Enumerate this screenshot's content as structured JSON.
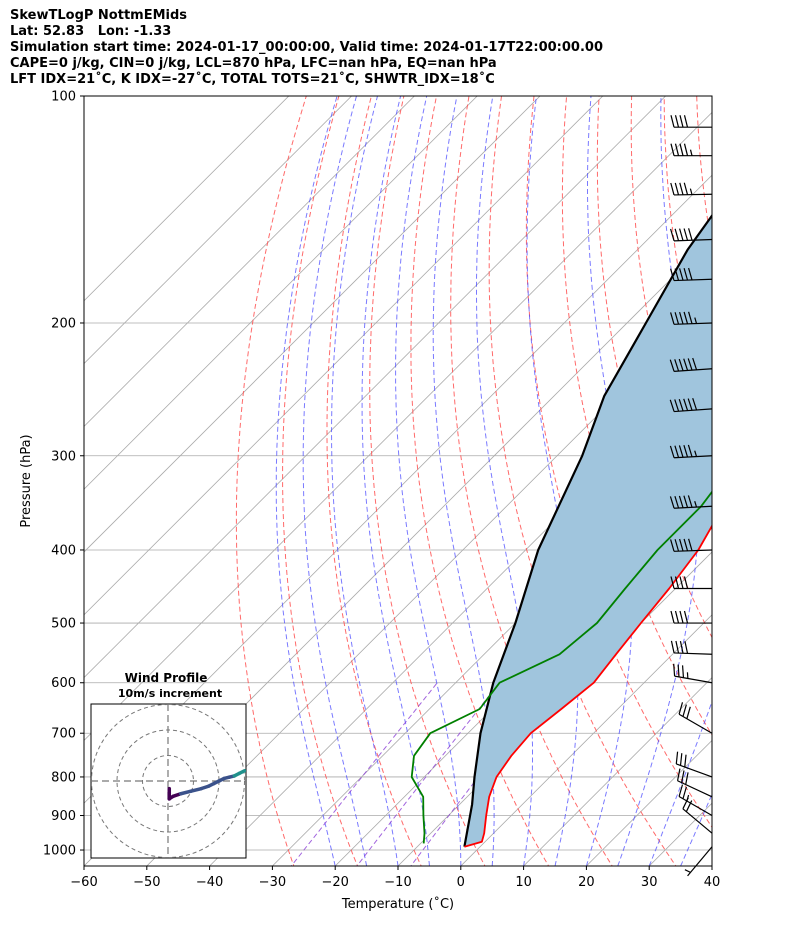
{
  "header": {
    "line1": "SkewTLogP NottmEMids",
    "line2": "Lat: 52.83   Lon: -1.33",
    "line3": "Simulation start time: 2024-01-17_00:00:00, Valid time: 2024-01-17T22:00:00.00",
    "line4": "CAPE=0 j/kg, CIN=0 j/kg, LCL=870 hPa, LFC=nan hPa, EQ=nan hPa",
    "line5": "LFT IDX=21˚C, K IDX=-27˚C, TOTAL TOTS=21˚C, SHWTR_IDX=18˚C"
  },
  "chart_data": {
    "type": "line",
    "xlabel": "Temperature (˚C)",
    "ylabel": "Pressure (hPa)",
    "xlim": [
      -60,
      40
    ],
    "ylim": [
      1050,
      100
    ],
    "y_scale": "log",
    "skew": "isotherms skewed 45°",
    "grid": true,
    "x_ticks": [
      "−60",
      "−50",
      "−40",
      "−30",
      "−20",
      "−10",
      "0",
      "10",
      "20",
      "30",
      "40"
    ],
    "y_ticks": [
      "100",
      "200",
      "300",
      "400",
      "500",
      "600",
      "700",
      "800",
      "900",
      "1000"
    ],
    "series": [
      {
        "role": "temperature",
        "color": "#ff0000",
        "points": [
          [
            -2.5,
            990
          ],
          [
            -0.5,
            975
          ],
          [
            -1.5,
            950
          ],
          [
            -4,
            900
          ],
          [
            -6.5,
            850
          ],
          [
            -8.5,
            800
          ],
          [
            -9.5,
            750
          ],
          [
            -10,
            700
          ],
          [
            -9,
            650
          ],
          [
            -8,
            600
          ],
          [
            -9,
            550
          ],
          [
            -10,
            500
          ],
          [
            -11,
            450
          ],
          [
            -12.5,
            400
          ],
          [
            -15.5,
            350
          ],
          [
            -19.5,
            300
          ],
          [
            -22.5,
            265
          ],
          [
            -24,
            240
          ],
          [
            -24,
            225
          ],
          [
            -24,
            200
          ],
          [
            -25,
            180
          ],
          [
            -27,
            160
          ],
          [
            -30,
            140
          ],
          [
            -34,
            125
          ],
          [
            -39,
            115
          ],
          [
            -44,
            100
          ]
        ]
      },
      {
        "role": "dewpoint",
        "color": "#008000",
        "points": [
          [
            -9.5,
            980
          ],
          [
            -11,
            950
          ],
          [
            -14,
            900
          ],
          [
            -17,
            850
          ],
          [
            -22,
            800
          ],
          [
            -25,
            750
          ],
          [
            -26,
            700
          ],
          [
            -22,
            650
          ],
          [
            -23,
            600
          ],
          [
            -18,
            550
          ],
          [
            -17,
            500
          ],
          [
            -18,
            450
          ],
          [
            -19,
            400
          ],
          [
            -19,
            350
          ],
          [
            -21,
            300
          ],
          [
            -22,
            270
          ],
          [
            -22,
            250
          ],
          [
            -24,
            230
          ],
          [
            -25,
            200
          ],
          [
            -26,
            175
          ],
          [
            -27,
            160
          ],
          [
            -30,
            150
          ],
          [
            -39,
            135
          ],
          [
            -46,
            120
          ],
          [
            -53,
            100
          ]
        ]
      },
      {
        "role": "parcel_path",
        "color": "#000000",
        "points": [
          [
            -2.5,
            990
          ],
          [
            -8,
            870
          ],
          [
            -12,
            800
          ],
          [
            -18,
            700
          ],
          [
            -24,
            600
          ],
          [
            -30,
            500
          ],
          [
            -38,
            400
          ],
          [
            -46,
            300
          ],
          [
            -52,
            250
          ],
          [
            -57,
            200
          ],
          [
            -62,
            160
          ],
          [
            -64,
            140
          ],
          [
            -68,
            100
          ]
        ]
      }
    ],
    "wind_barbs": {
      "color": "#000000",
      "levels": [
        {
          "p": 990,
          "speed_kt": 5,
          "dir_deg": 220
        },
        {
          "p": 950,
          "speed_kt": 20,
          "dir_deg": 310
        },
        {
          "p": 900,
          "speed_kt": 25,
          "dir_deg": 300
        },
        {
          "p": 850,
          "speed_kt": 30,
          "dir_deg": 295
        },
        {
          "p": 800,
          "speed_kt": 30,
          "dir_deg": 290
        },
        {
          "p": 700,
          "speed_kt": 30,
          "dir_deg": 300
        },
        {
          "p": 600,
          "speed_kt": 35,
          "dir_deg": 280
        },
        {
          "p": 550,
          "speed_kt": 40,
          "dir_deg": 272
        },
        {
          "p": 500,
          "speed_kt": 40,
          "dir_deg": 270
        },
        {
          "p": 450,
          "speed_kt": 40,
          "dir_deg": 270
        },
        {
          "p": 400,
          "speed_kt": 50,
          "dir_deg": 268
        },
        {
          "p": 350,
          "speed_kt": 55,
          "dir_deg": 267
        },
        {
          "p": 300,
          "speed_kt": 55,
          "dir_deg": 267
        },
        {
          "p": 260,
          "speed_kt": 60,
          "dir_deg": 266
        },
        {
          "p": 230,
          "speed_kt": 60,
          "dir_deg": 266
        },
        {
          "p": 200,
          "speed_kt": 55,
          "dir_deg": 268
        },
        {
          "p": 175,
          "speed_kt": 50,
          "dir_deg": 268
        },
        {
          "p": 155,
          "speed_kt": 50,
          "dir_deg": 268
        },
        {
          "p": 135,
          "speed_kt": 45,
          "dir_deg": 269
        },
        {
          "p": 120,
          "speed_kt": 45,
          "dir_deg": 270
        },
        {
          "p": 110,
          "speed_kt": 40,
          "dir_deg": 270
        }
      ]
    },
    "inset": {
      "title": "Wind Profile",
      "subtitle": "10m/s increment",
      "rings_ms": [
        10,
        20,
        30
      ],
      "hodograph_colormap": [
        "#440154",
        "#3b528b",
        "#21918c"
      ],
      "hodograph_uv_ms": [
        [
          0.5,
          -3
        ],
        [
          0.5,
          -5
        ],
        [
          0.5,
          -7
        ],
        [
          2,
          -6
        ],
        [
          5,
          -5
        ],
        [
          9,
          -4
        ],
        [
          13,
          -3
        ],
        [
          16,
          -2
        ],
        [
          18,
          -1
        ],
        [
          20,
          0
        ],
        [
          22,
          1
        ],
        [
          24,
          1.5
        ],
        [
          26,
          2
        ],
        [
          28,
          3
        ],
        [
          30,
          4
        ]
      ]
    },
    "background_lines": {
      "isotherm_color": "#aaaaaa",
      "dry_adiabat_color": "#ff5050",
      "moist_adiabat_color": "#4d4dff",
      "mixing_ratio_color": "#8b3fd6",
      "cape_cin_fill": "#a0c5dd"
    }
  }
}
